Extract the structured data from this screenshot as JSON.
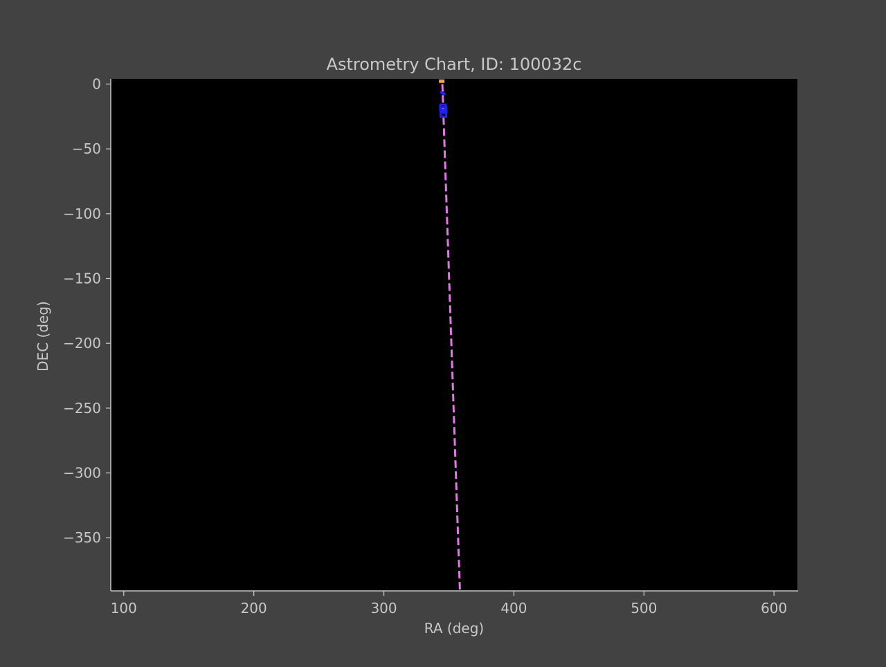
{
  "chart_data": {
    "type": "line",
    "title": "Astrometry Chart, ID: 100032c",
    "xlabel": "RA (deg)",
    "ylabel": "DEC (deg)",
    "xlim": [
      90,
      618
    ],
    "ylim": [
      -391,
      4
    ],
    "xticks": [
      100,
      200,
      300,
      400,
      500,
      600
    ],
    "xtick_labels": [
      "100",
      "200",
      "300",
      "400",
      "500",
      "600"
    ],
    "yticks": [
      0,
      -50,
      -100,
      -150,
      -200,
      -250,
      -300,
      -350
    ],
    "ytick_labels": [
      "0",
      "−50",
      "−100",
      "−150",
      "−200",
      "−250",
      "−300",
      "−350"
    ],
    "grid": false,
    "background": "#000000",
    "series": [
      {
        "style": "dashed-line",
        "color": "#e377e8",
        "x": [
          345,
          358.5
        ],
        "y": [
          0,
          -391
        ]
      },
      {
        "style": "short-line",
        "color": "#1f1fff",
        "x": [
          344.2,
          346.4
        ],
        "y": [
          -6.5,
          -7.5
        ]
      },
      {
        "style": "marker-cluster",
        "color": "#1f1fff",
        "x": [
          345.5,
          346.0,
          345.8
        ],
        "y": [
          -18,
          -20,
          -23
        ]
      },
      {
        "style": "marker",
        "color": "#f4a14a",
        "x": [
          344.5
        ],
        "y": [
          2.5
        ]
      }
    ]
  }
}
